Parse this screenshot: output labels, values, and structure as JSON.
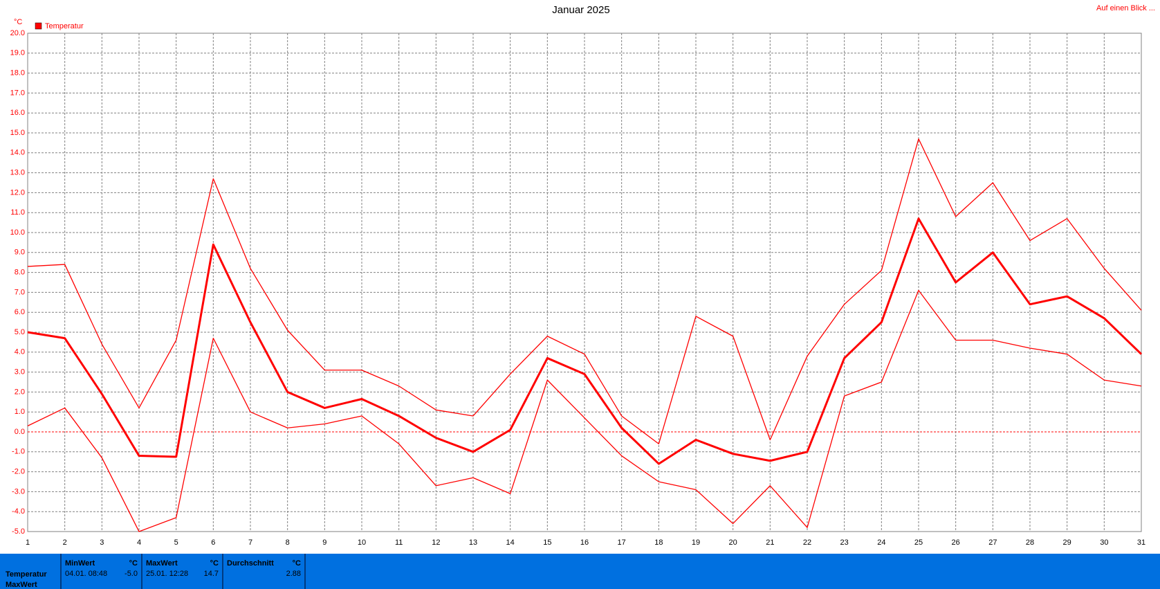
{
  "chart_data": {
    "type": "line",
    "title": "Januar 2025",
    "corner_link": "Auf einen Blick ...",
    "y_unit": "°C",
    "categories": [
      "1",
      "2",
      "3",
      "4",
      "5",
      "6",
      "7",
      "8",
      "9",
      "10",
      "11",
      "12",
      "13",
      "14",
      "15",
      "16",
      "17",
      "18",
      "19",
      "20",
      "21",
      "22",
      "23",
      "24",
      "25",
      "26",
      "27",
      "28",
      "29",
      "30",
      "31"
    ],
    "series": [
      {
        "name": "Temperatur",
        "color": "#ff0000",
        "values": [
          5.0,
          4.7,
          1.9,
          -1.2,
          -1.25,
          9.4,
          5.5,
          2.0,
          1.2,
          1.65,
          0.8,
          -0.3,
          -1.0,
          0.1,
          3.7,
          2.9,
          0.2,
          -1.6,
          -0.4,
          -1.1,
          -1.45,
          -1.0,
          3.7,
          5.5,
          10.7,
          7.5,
          9.0,
          6.4,
          6.8,
          5.7,
          3.9
        ],
        "max": [
          8.3,
          8.4,
          4.4,
          1.2,
          4.6,
          12.7,
          8.2,
          5.1,
          3.1,
          3.1,
          2.3,
          1.1,
          0.8,
          2.9,
          4.8,
          3.9,
          0.8,
          -0.6,
          5.8,
          4.8,
          -0.4,
          3.8,
          6.4,
          8.1,
          14.7,
          10.8,
          12.5,
          9.6,
          10.7,
          8.2,
          6.1
        ],
        "min": [
          0.3,
          1.2,
          -1.3,
          -5.0,
          -4.3,
          4.7,
          1.0,
          0.2,
          0.4,
          0.8,
          -0.6,
          -2.7,
          -2.3,
          -3.1,
          2.6,
          0.7,
          -1.2,
          -2.5,
          -2.9,
          -4.6,
          -2.7,
          -4.8,
          1.8,
          2.5,
          7.1,
          4.6,
          4.6,
          4.2,
          3.9,
          2.6,
          2.3
        ]
      }
    ],
    "ylim": [
      -5,
      20
    ],
    "yticks": [
      {
        "value": -5,
        "label": "-5.0"
      },
      {
        "value": -4,
        "label": "-4.0"
      },
      {
        "value": -3,
        "label": "-3.0"
      },
      {
        "value": -2,
        "label": "-2.0"
      },
      {
        "value": -1,
        "label": "-1.0"
      },
      {
        "value": 0,
        "label": "0.0"
      },
      {
        "value": 1,
        "label": "1.0"
      },
      {
        "value": 2,
        "label": "2.0"
      },
      {
        "value": 3,
        "label": "3.0"
      },
      {
        "value": 4,
        "label": "4.0"
      },
      {
        "value": 5,
        "label": "5.0"
      },
      {
        "value": 6,
        "label": "6.0"
      },
      {
        "value": 7,
        "label": "7.0"
      },
      {
        "value": 8,
        "label": "8.0"
      },
      {
        "value": 9,
        "label": "9.0"
      },
      {
        "value": 10,
        "label": "10.0"
      },
      {
        "value": 11,
        "label": "11.0"
      },
      {
        "value": 12,
        "label": "12.0"
      },
      {
        "value": 13,
        "label": "13.0"
      },
      {
        "value": 14,
        "label": "14.0"
      },
      {
        "value": 15,
        "label": "15.0"
      },
      {
        "value": 16,
        "label": "16.0"
      },
      {
        "value": 17,
        "label": "17.0"
      },
      {
        "value": 18,
        "label": "18.0"
      },
      {
        "value": 19,
        "label": "19.0"
      },
      {
        "value": 20,
        "label": "20.0"
      }
    ],
    "grid": true
  },
  "stats": {
    "row_labels": [
      "Temperatur",
      "MaxWert"
    ],
    "columns": [
      {
        "name": "MinWert",
        "unit": "°C",
        "time": "04.01. 08:48",
        "value": "-5.0"
      },
      {
        "name": "MaxWert",
        "unit": "°C",
        "time": "25.01. 12:28",
        "value": "14.7"
      },
      {
        "name": "Durchschnitt",
        "unit": "°C",
        "value": "2.88"
      }
    ]
  }
}
